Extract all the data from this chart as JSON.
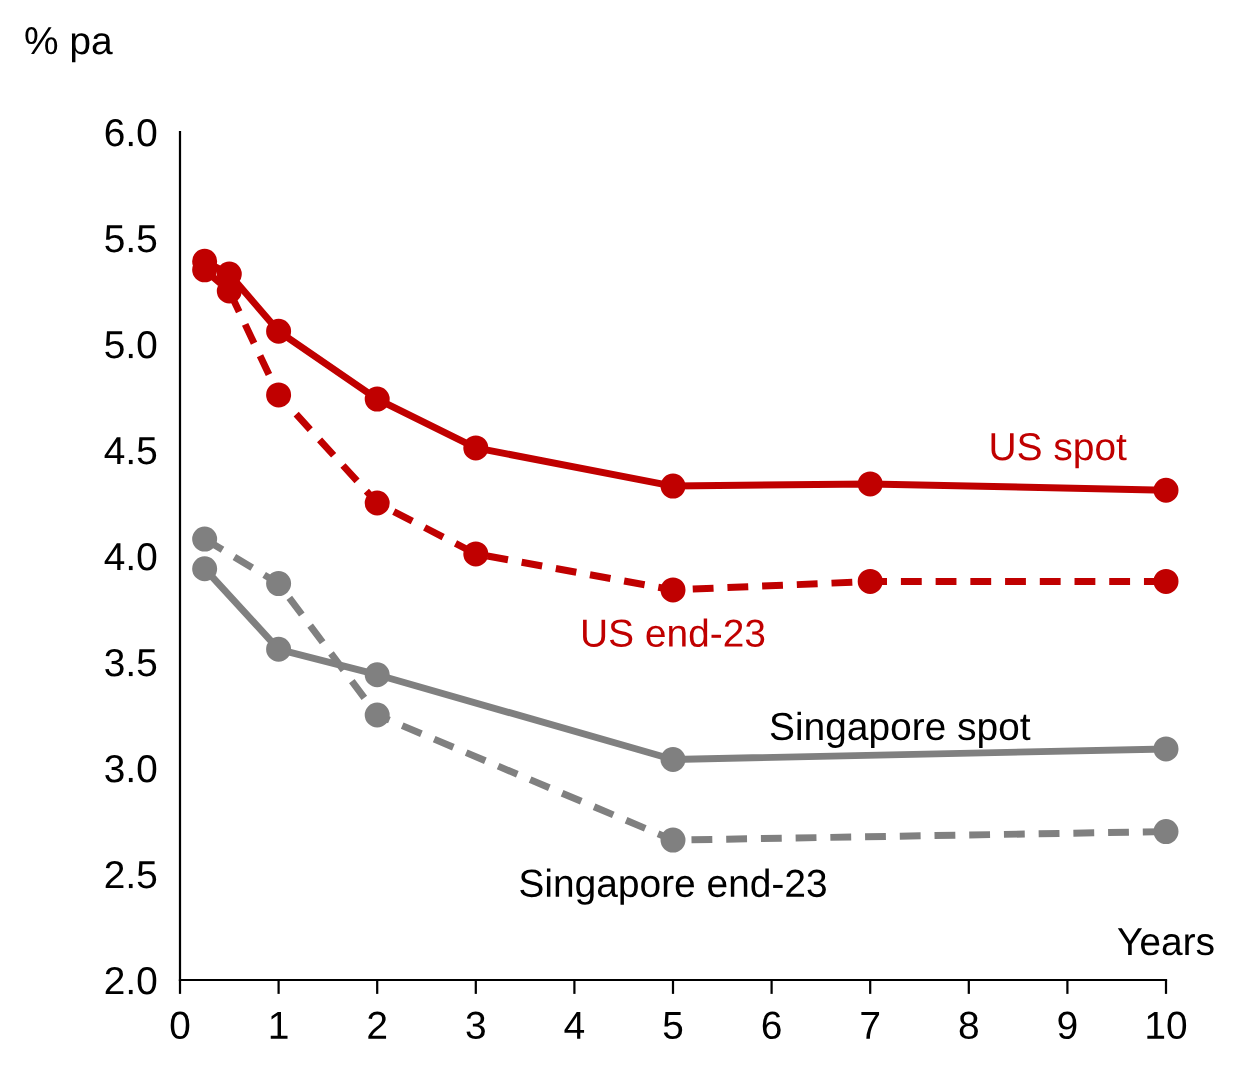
{
  "chart_data": {
    "type": "line",
    "xlabel": "Years",
    "ylabel": "% pa",
    "xlim": [
      0,
      10
    ],
    "xticks": [
      0,
      1,
      2,
      3,
      4,
      5,
      6,
      7,
      8,
      9,
      10
    ],
    "ylim": [
      2.0,
      6.0
    ],
    "yticks": [
      {
        "value": 2.0,
        "label": "2.0"
      },
      {
        "value": 2.5,
        "label": "2.5"
      },
      {
        "value": 3.0,
        "label": "3.0"
      },
      {
        "value": 3.5,
        "label": "3.5"
      },
      {
        "value": 4.0,
        "label": "4.0"
      },
      {
        "value": 4.5,
        "label": "4.5"
      },
      {
        "value": 5.0,
        "label": "5.0"
      },
      {
        "value": 5.5,
        "label": "5.5"
      },
      {
        "value": 6.0,
        "label": "6.0"
      }
    ],
    "grid": false,
    "legend": false,
    "marker": "circle",
    "series": [
      {
        "name": "US spot",
        "color": "#c00000",
        "line_style": "solid",
        "x": [
          0.25,
          0.5,
          1,
          2,
          3,
          5,
          7,
          10
        ],
        "values": [
          5.39,
          5.33,
          5.06,
          4.74,
          4.51,
          4.33,
          4.34,
          4.31
        ]
      },
      {
        "name": "US end-23",
        "color": "#c00000",
        "line_style": "dashed",
        "x": [
          0.25,
          0.5,
          1,
          2,
          3,
          5,
          7,
          10
        ],
        "values": [
          5.35,
          5.25,
          4.76,
          4.25,
          4.01,
          3.84,
          3.88,
          3.88
        ]
      },
      {
        "name": "Singapore spot",
        "color": "#808080",
        "line_style": "solid",
        "x": [
          0.25,
          1,
          2,
          5,
          10
        ],
        "values": [
          3.94,
          3.56,
          3.44,
          3.04,
          3.09
        ]
      },
      {
        "name": "Singapore end-23",
        "color": "#808080",
        "line_style": "dashed",
        "x": [
          0.25,
          1,
          2,
          5,
          10
        ],
        "values": [
          4.08,
          3.87,
          3.25,
          2.66,
          2.7
        ]
      }
    ]
  }
}
